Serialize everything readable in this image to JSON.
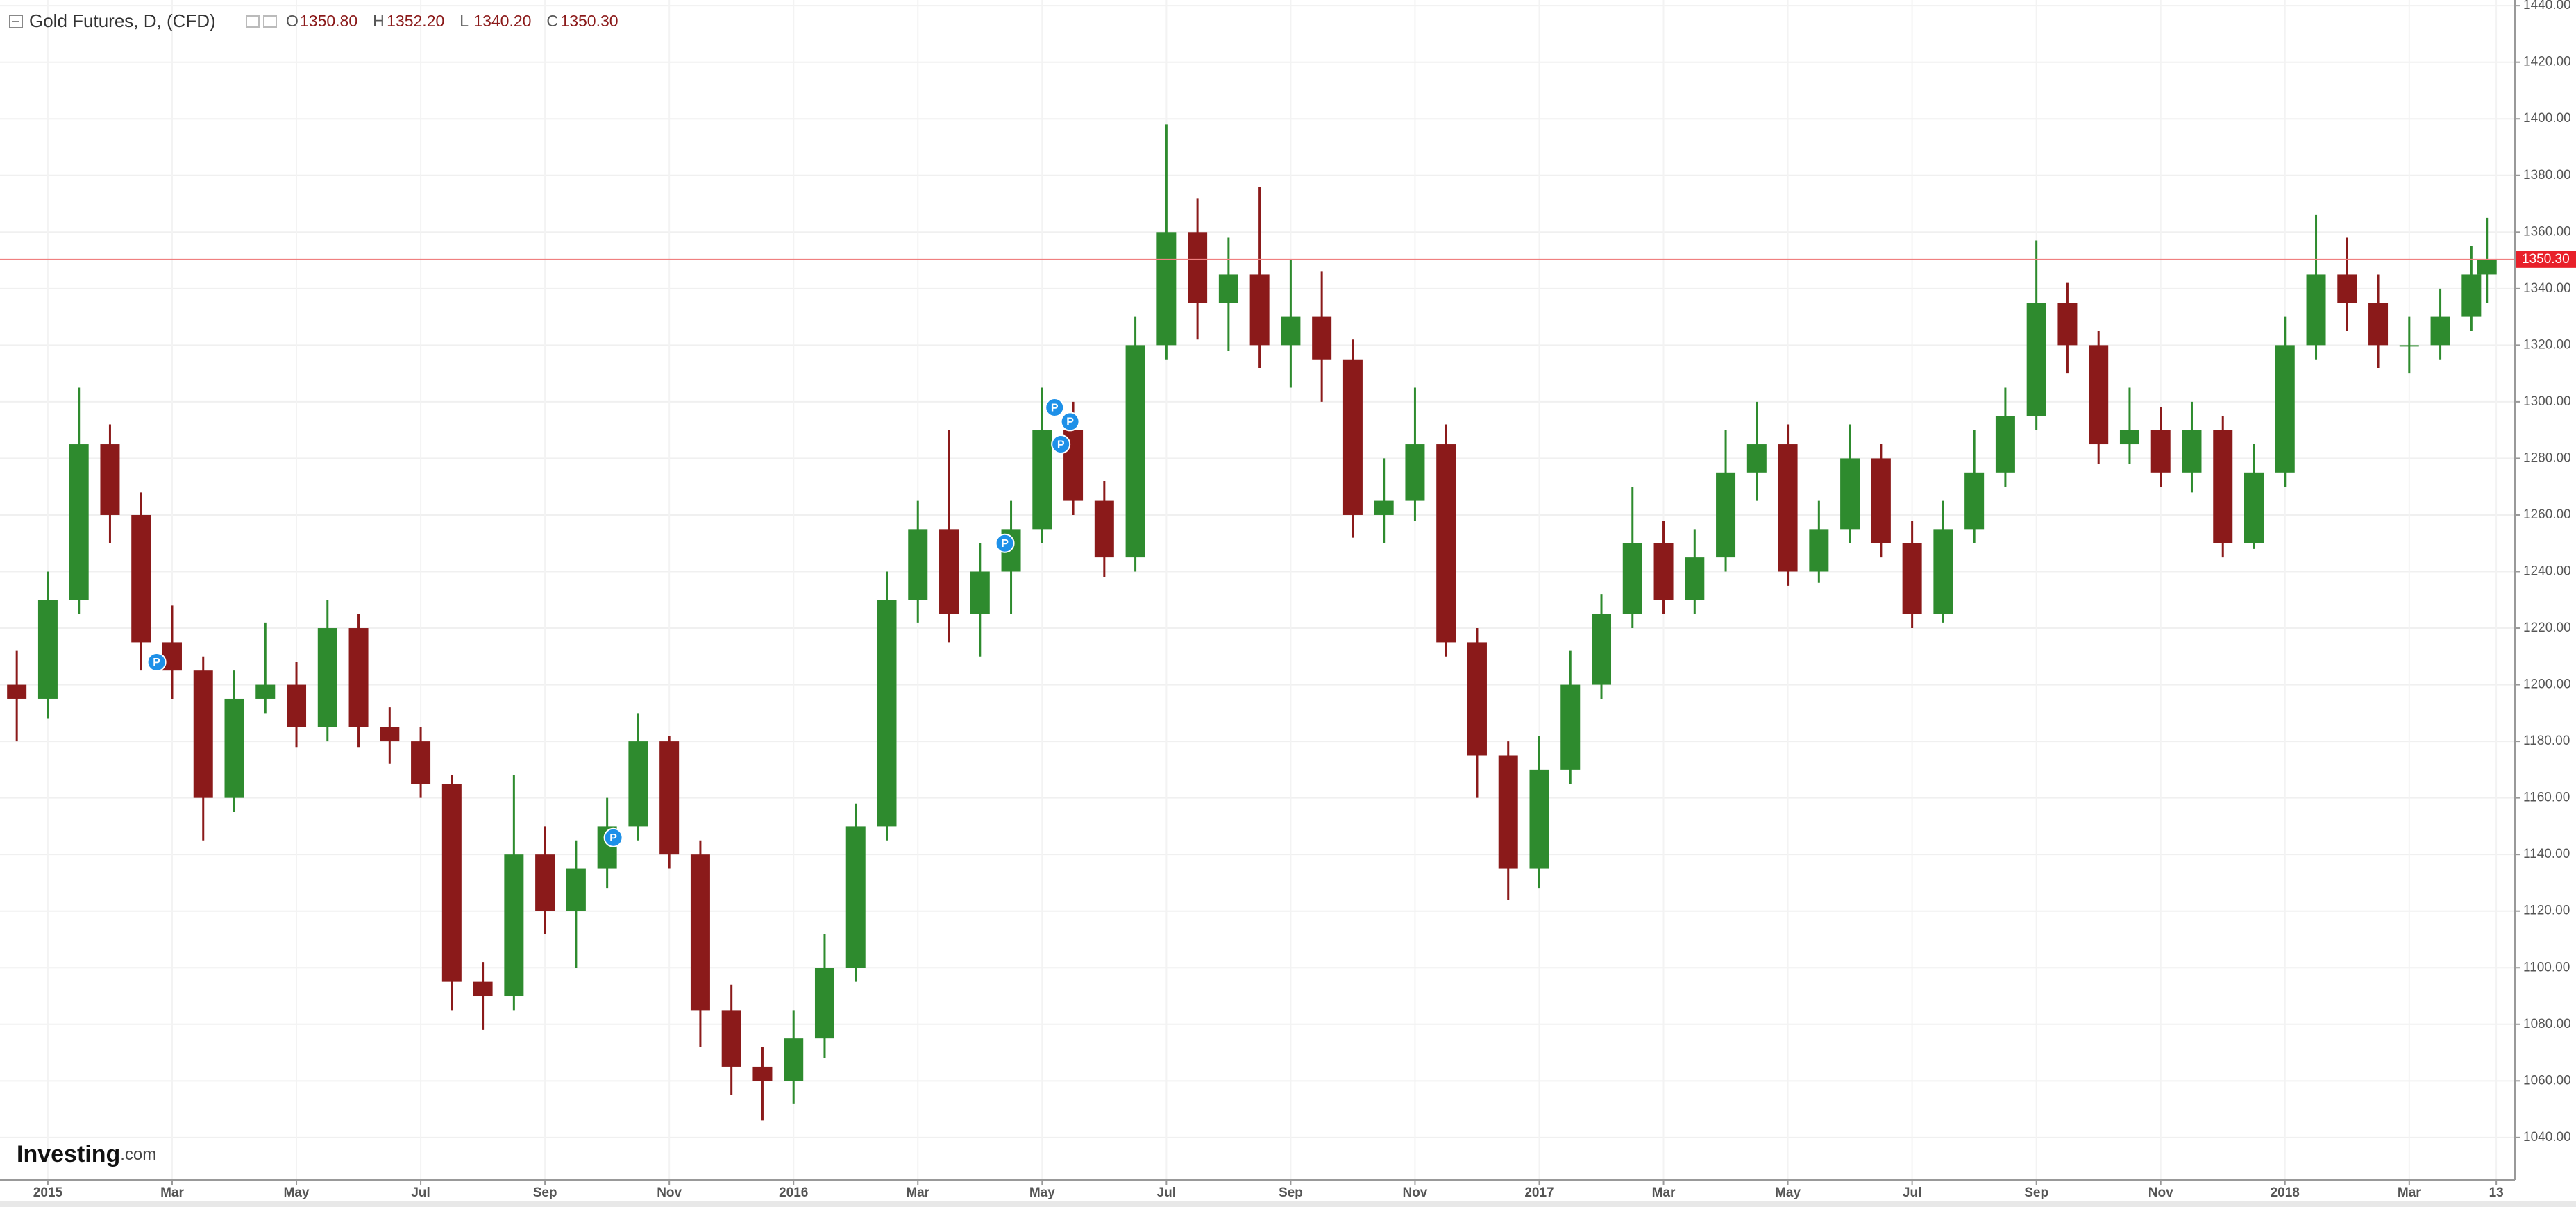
{
  "chart_data": {
    "type": "candlestick",
    "title": "Gold Futures, D, (CFD)",
    "header_values": [
      {
        "key": "O",
        "value": "1350.80"
      },
      {
        "key": "H",
        "value": "1352.20"
      },
      {
        "key": "L",
        "value": "1340.20"
      },
      {
        "key": "C",
        "value": "1350.30"
      }
    ],
    "watermark": [
      "Investing",
      ".com"
    ],
    "last_price": {
      "value": 1350.3,
      "label": "1350.30"
    },
    "up_color": "#2e8b2e",
    "down_color": "#8b1a1a",
    "grid": true,
    "x": [
      -0.5,
      0,
      0.5,
      1,
      1.5,
      2,
      2.5,
      3,
      3.5,
      4,
      4.5,
      5,
      5.5,
      6,
      6.5,
      7,
      7.5,
      8,
      8.5,
      9,
      9.5,
      10,
      10.5,
      11,
      11.5,
      12,
      12.5,
      13,
      13.5,
      14,
      14.5,
      15,
      15.5,
      16,
      16.5,
      17,
      17.5,
      18,
      18.5,
      19,
      19.5,
      20,
      20.5,
      21,
      21.5,
      22,
      22.5,
      23,
      23.5,
      24,
      24.5,
      25,
      25.5,
      26,
      26.5,
      27,
      27.5,
      28,
      28.5,
      29,
      29.5,
      30,
      30.5,
      31,
      31.5,
      32,
      32.5,
      33,
      33.5,
      34,
      34.5,
      35,
      35.5,
      36,
      36.5,
      37,
      37.5,
      38,
      38.5,
      39,
      39.25
    ],
    "open": [
      1200,
      1195,
      1230,
      1285,
      1260,
      1215,
      1205,
      1160,
      1195,
      1200,
      1185,
      1220,
      1185,
      1180,
      1165,
      1095,
      1090,
      1140,
      1120,
      1135,
      1150,
      1180,
      1140,
      1085,
      1065,
      1060,
      1075,
      1100,
      1150,
      1230,
      1255,
      1225,
      1240,
      1255,
      1290,
      1265,
      1245,
      1320,
      1360,
      1335,
      1345,
      1320,
      1330,
      1315,
      1260,
      1265,
      1285,
      1215,
      1175,
      1135,
      1170,
      1200,
      1225,
      1250,
      1230,
      1245,
      1275,
      1285,
      1240,
      1255,
      1280,
      1250,
      1225,
      1255,
      1275,
      1295,
      1335,
      1320,
      1285,
      1290,
      1275,
      1290,
      1250,
      1275,
      1320,
      1345,
      1335,
      1320,
      1320,
      1330,
      1345
    ],
    "high": [
      1212,
      1240,
      1305,
      1292,
      1268,
      1228,
      1210,
      1205,
      1222,
      1208,
      1230,
      1225,
      1192,
      1185,
      1168,
      1102,
      1168,
      1150,
      1145,
      1160,
      1190,
      1182,
      1145,
      1094,
      1072,
      1085,
      1112,
      1158,
      1240,
      1265,
      1290,
      1250,
      1265,
      1305,
      1300,
      1272,
      1330,
      1398,
      1372,
      1358,
      1376,
      1350,
      1346,
      1322,
      1280,
      1305,
      1292,
      1220,
      1180,
      1182,
      1212,
      1232,
      1270,
      1258,
      1255,
      1290,
      1300,
      1292,
      1265,
      1292,
      1285,
      1258,
      1265,
      1290,
      1305,
      1357,
      1342,
      1325,
      1305,
      1298,
      1300,
      1295,
      1285,
      1330,
      1366,
      1358,
      1345,
      1330,
      1340,
      1355,
      1365
    ],
    "low": [
      1180,
      1188,
      1225,
      1250,
      1205,
      1195,
      1145,
      1155,
      1190,
      1178,
      1180,
      1178,
      1172,
      1160,
      1085,
      1078,
      1085,
      1112,
      1100,
      1128,
      1145,
      1135,
      1072,
      1055,
      1046,
      1052,
      1068,
      1095,
      1145,
      1222,
      1215,
      1210,
      1225,
      1250,
      1260,
      1238,
      1240,
      1315,
      1322,
      1318,
      1312,
      1305,
      1300,
      1252,
      1250,
      1258,
      1210,
      1160,
      1124,
      1128,
      1165,
      1195,
      1220,
      1225,
      1225,
      1240,
      1265,
      1235,
      1236,
      1250,
      1245,
      1220,
      1222,
      1250,
      1270,
      1290,
      1310,
      1278,
      1278,
      1270,
      1268,
      1245,
      1248,
      1270,
      1315,
      1325,
      1312,
      1310,
      1315,
      1325,
      1335
    ],
    "close": [
      1195,
      1230,
      1285,
      1260,
      1215,
      1205,
      1160,
      1195,
      1200,
      1185,
      1220,
      1185,
      1180,
      1165,
      1095,
      1090,
      1140,
      1120,
      1135,
      1150,
      1180,
      1140,
      1085,
      1065,
      1060,
      1075,
      1100,
      1150,
      1230,
      1255,
      1225,
      1240,
      1255,
      1290,
      1265,
      1245,
      1320,
      1360,
      1335,
      1345,
      1320,
      1330,
      1315,
      1260,
      1265,
      1285,
      1215,
      1175,
      1135,
      1170,
      1200,
      1225,
      1250,
      1230,
      1245,
      1275,
      1285,
      1240,
      1255,
      1280,
      1250,
      1225,
      1255,
      1275,
      1295,
      1335,
      1320,
      1285,
      1290,
      1275,
      1290,
      1250,
      1275,
      1320,
      1345,
      1335,
      1320,
      1320,
      1330,
      1345,
      1350.3
    ],
    "events": [
      {
        "x": 1.75,
        "y": 1208,
        "label": "P"
      },
      {
        "x": 9.1,
        "y": 1146,
        "label": "P"
      },
      {
        "x": 15.4,
        "y": 1250,
        "label": "P"
      },
      {
        "x": 16.2,
        "y": 1298,
        "label": "P"
      },
      {
        "x": 16.45,
        "y": 1293,
        "label": "P"
      },
      {
        "x": 16.3,
        "y": 1285,
        "label": "P"
      }
    ],
    "xlim": [
      -0.77,
      39.7
    ],
    "xticks": [
      {
        "value": 0,
        "label": "2015"
      },
      {
        "value": 2,
        "label": "Mar"
      },
      {
        "value": 4,
        "label": "May"
      },
      {
        "value": 6,
        "label": "Jul"
      },
      {
        "value": 8,
        "label": "Sep"
      },
      {
        "value": 10,
        "label": "Nov"
      },
      {
        "value": 12,
        "label": "2016"
      },
      {
        "value": 14,
        "label": "Mar"
      },
      {
        "value": 16,
        "label": "May"
      },
      {
        "value": 18,
        "label": "Jul"
      },
      {
        "value": 20,
        "label": "Sep"
      },
      {
        "value": 22,
        "label": "Nov"
      },
      {
        "value": 24,
        "label": "2017"
      },
      {
        "value": 26,
        "label": "Mar"
      },
      {
        "value": 28,
        "label": "May"
      },
      {
        "value": 30,
        "label": "Jul"
      },
      {
        "value": 32,
        "label": "Sep"
      },
      {
        "value": 34,
        "label": "Nov"
      },
      {
        "value": 36,
        "label": "2018"
      },
      {
        "value": 38,
        "label": "Mar"
      },
      {
        "value": 39.4,
        "label": "13"
      }
    ],
    "ylim": [
      1025,
      1442
    ],
    "yticks": [
      {
        "value": 1040,
        "label": "1040.00"
      },
      {
        "value": 1060,
        "label": "1060.00"
      },
      {
        "value": 1080,
        "label": "1080.00"
      },
      {
        "value": 1100,
        "label": "1100.00"
      },
      {
        "value": 1120,
        "label": "1120.00"
      },
      {
        "value": 1140,
        "label": "1140.00"
      },
      {
        "value": 1160,
        "label": "1160.00"
      },
      {
        "value": 1180,
        "label": "1180.00"
      },
      {
        "value": 1200,
        "label": "1200.00"
      },
      {
        "value": 1220,
        "label": "1220.00"
      },
      {
        "value": 1240,
        "label": "1240.00"
      },
      {
        "value": 1260,
        "label": "1260.00"
      },
      {
        "value": 1280,
        "label": "1280.00"
      },
      {
        "value": 1300,
        "label": "1300.00"
      },
      {
        "value": 1320,
        "label": "1320.00"
      },
      {
        "value": 1340,
        "label": "1340.00"
      },
      {
        "value": 1360,
        "label": "1360.00"
      },
      {
        "value": 1380,
        "label": "1380.00"
      },
      {
        "value": 1400,
        "label": "1400.00"
      },
      {
        "value": 1420,
        "label": "1420.00"
      },
      {
        "value": 1440,
        "label": "1440.00"
      }
    ]
  }
}
